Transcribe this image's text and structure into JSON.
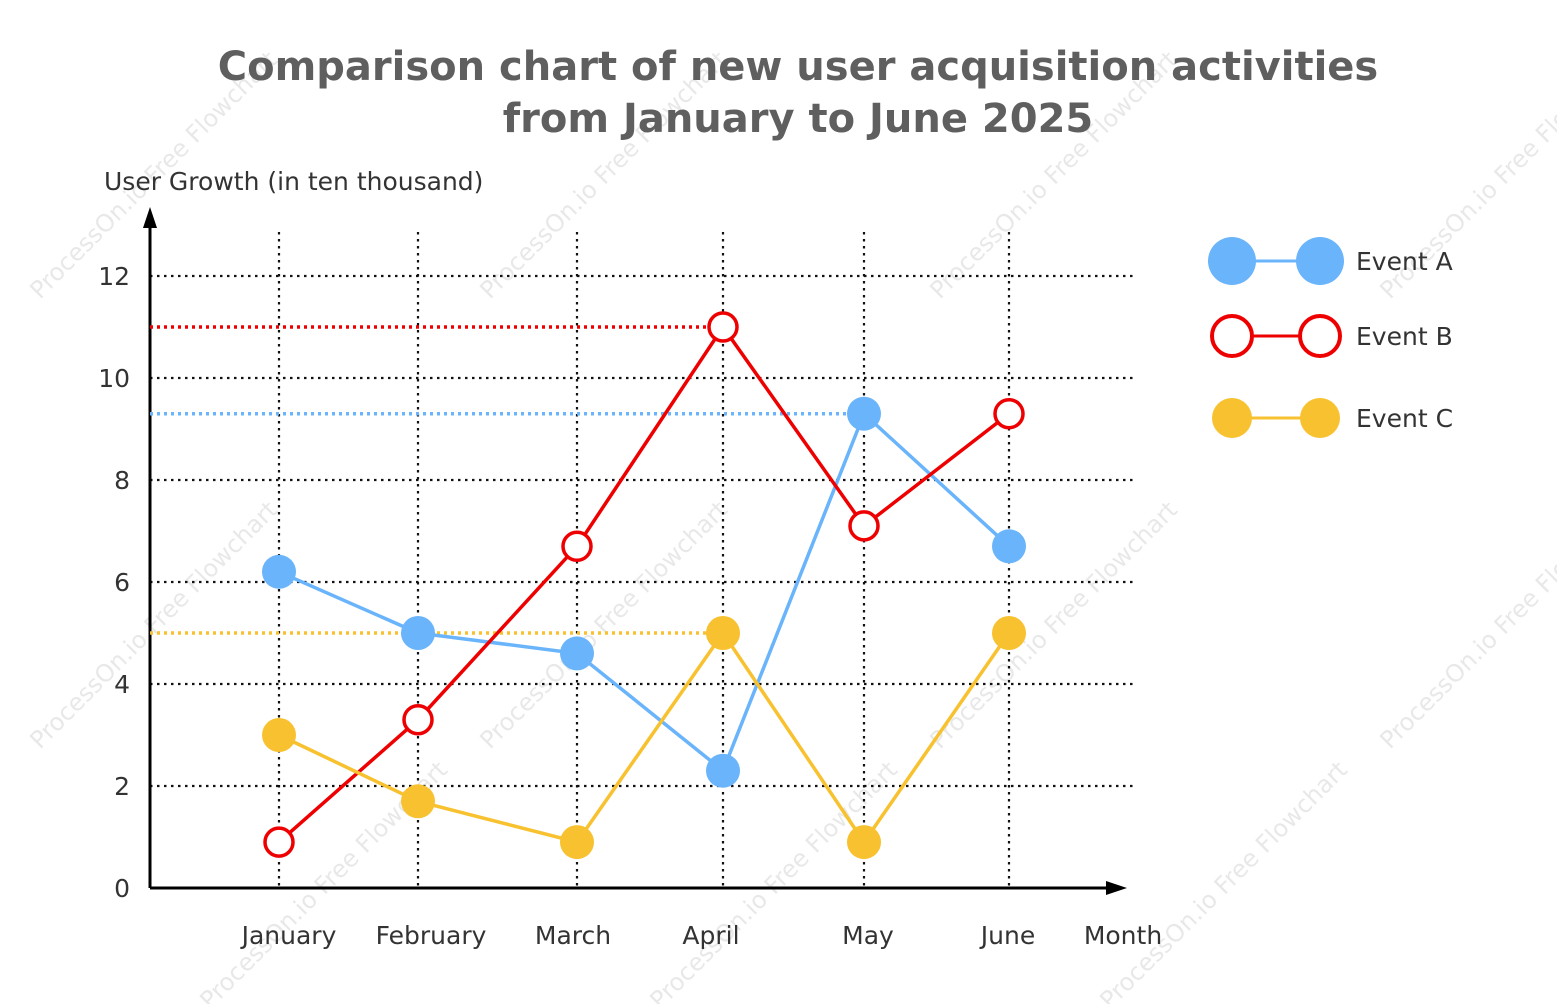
{
  "chart_data": {
    "type": "line",
    "title": [
      "Comparison chart of new user acquisition activities",
      "from January to June 2025"
    ],
    "ylabel": "User Growth (in ten thousand)",
    "xlabel": "Month",
    "categories": [
      "January",
      "February",
      "March",
      "April",
      "May",
      "June"
    ],
    "yticks": [
      "0",
      "2",
      "4",
      "6",
      "8",
      "10",
      "12"
    ],
    "ylim": [
      0,
      13
    ],
    "grid": true,
    "legend_position": "top-right",
    "series": [
      {
        "name": "Event A",
        "color": "#69b4fb",
        "marker": "filled",
        "values": [
          6.2,
          5.0,
          4.6,
          2.3,
          9.3,
          6.7
        ],
        "max_ref": 9.3
      },
      {
        "name": "Event B",
        "color": "#ee0000",
        "marker": "hollow",
        "values": [
          0.9,
          3.3,
          6.7,
          11.0,
          7.1,
          9.3
        ],
        "max_ref": 11.0
      },
      {
        "name": "Event C",
        "color": "#f8c12f",
        "marker": "filled",
        "values": [
          3.0,
          1.7,
          0.9,
          5.0,
          0.9,
          5.0
        ],
        "max_ref": 5.0
      }
    ],
    "watermark": "ProcessOn.io Free Flowchart"
  }
}
